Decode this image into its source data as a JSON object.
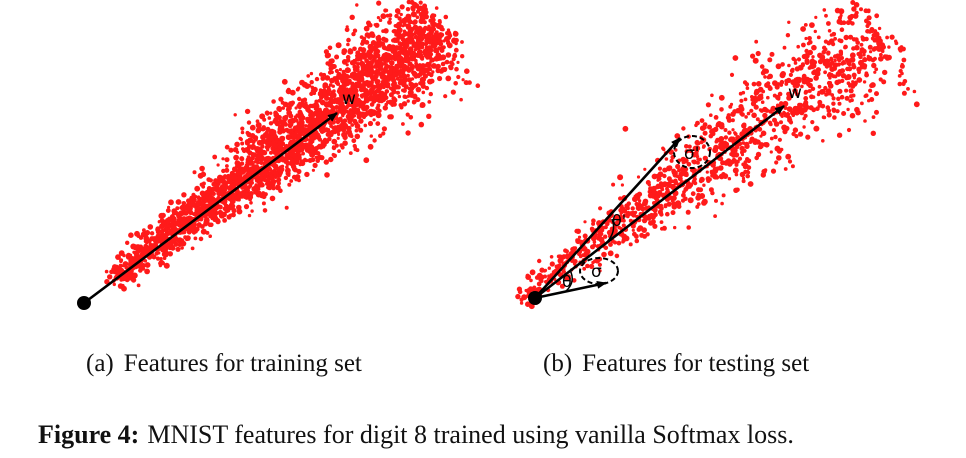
{
  "panels": [
    {
      "sub_label": "(a)",
      "caption": "Features for training set",
      "vector_label": "w",
      "point_color": "#ff1a1a"
    },
    {
      "sub_label": "(b)",
      "caption": "Features for testing set",
      "vector_label": "w",
      "angle_label_1": "θ",
      "angle_label_2": "θ'",
      "sigma_label_1": "σ",
      "sigma_label_2": "σ'",
      "point_color": "#ff1a1a"
    }
  ],
  "figure_caption": {
    "number": "Figure 4:",
    "text": "MNIST features for digit 8 trained using vanilla Softmax loss."
  }
}
